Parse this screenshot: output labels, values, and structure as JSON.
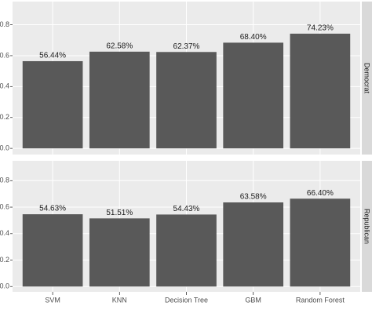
{
  "chart_data": {
    "type": "bar",
    "categories": [
      "SVM",
      "KNN",
      "Decision Tree",
      "GBM",
      "Random Forest"
    ],
    "series": [
      {
        "name": "Democrat",
        "color": "#595959",
        "values": [
          0.5644,
          0.6258,
          0.6237,
          0.684,
          0.7423
        ],
        "value_labels": [
          "56.44%",
          "62.58%",
          "62.37%",
          "68.40%",
          "74.23%"
        ]
      },
      {
        "name": "Republican",
        "color": "#595959",
        "values": [
          0.5463,
          0.5151,
          0.5443,
          0.6358,
          0.664
        ],
        "value_labels": [
          "54.63%",
          "51.51%",
          "54.43%",
          "63.58%",
          "66.40%"
        ]
      }
    ],
    "ylim": [
      -0.04,
      0.95
    ],
    "yticks": [
      {
        "value": 0,
        "label": "0.0"
      },
      {
        "value": 0.2,
        "label": "0.2"
      },
      {
        "value": 0.4,
        "label": "0.4"
      },
      {
        "value": 0.6,
        "label": "0.6"
      },
      {
        "value": 0.8,
        "label": "0.8"
      }
    ],
    "grid": true
  }
}
